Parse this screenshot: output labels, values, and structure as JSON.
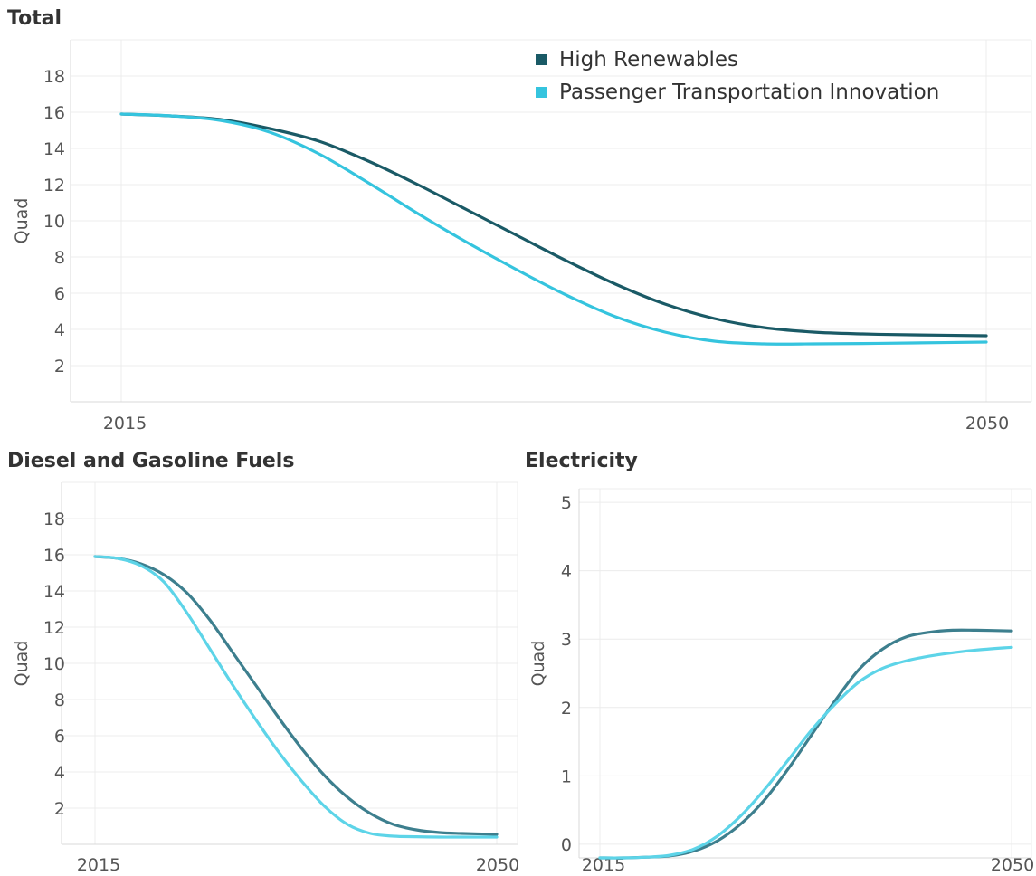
{
  "legend": [
    {
      "label": "High Renewables",
      "color": "#1a5a66"
    },
    {
      "label": "Passenger Transportation Innovation",
      "color": "#35c4de"
    }
  ],
  "chart_data": [
    {
      "id": "total",
      "type": "line",
      "title": "Total",
      "ylabel": "Quad",
      "xlabel": "",
      "x_ticks": [
        "2015",
        "2050"
      ],
      "xlim": [
        2015,
        2050
      ],
      "ylim": [
        0,
        20
      ],
      "y_ticks": [
        2,
        4,
        6,
        8,
        10,
        12,
        14,
        16,
        18
      ],
      "grid": true,
      "legend_position": "top-right",
      "series": [
        {
          "name": "High Renewables",
          "color": "#1a5a66",
          "x": [
            2015,
            2017,
            2019,
            2021,
            2023,
            2025,
            2027,
            2029,
            2031,
            2033,
            2035,
            2037,
            2039,
            2041,
            2043,
            2045,
            2047,
            2050
          ],
          "values": [
            15.9,
            15.8,
            15.6,
            15.1,
            14.4,
            13.3,
            12.0,
            10.6,
            9.2,
            7.8,
            6.5,
            5.4,
            4.6,
            4.1,
            3.85,
            3.75,
            3.7,
            3.65
          ]
        },
        {
          "name": "Passenger Transportation Innovation",
          "color": "#35c4de",
          "x": [
            2015,
            2017,
            2019,
            2021,
            2023,
            2025,
            2027,
            2029,
            2031,
            2033,
            2035,
            2037,
            2039,
            2041,
            2043,
            2045,
            2047,
            2050
          ],
          "values": [
            15.9,
            15.8,
            15.55,
            14.9,
            13.7,
            12.1,
            10.4,
            8.8,
            7.3,
            5.9,
            4.7,
            3.85,
            3.35,
            3.2,
            3.2,
            3.22,
            3.25,
            3.3
          ]
        }
      ]
    },
    {
      "id": "diesel",
      "type": "line",
      "title": "Diesel and Gasoline Fuels",
      "ylabel": "Quad",
      "xlabel": "",
      "x_ticks": [
        "2015",
        "2050"
      ],
      "xlim": [
        2015,
        2050
      ],
      "ylim": [
        0,
        20
      ],
      "y_ticks": [
        2,
        4,
        6,
        8,
        10,
        12,
        14,
        16,
        18
      ],
      "grid": true,
      "series": [
        {
          "name": "High Renewables",
          "color": "#3d7f8e",
          "x": [
            2015,
            2017,
            2019,
            2021,
            2023,
            2025,
            2027,
            2029,
            2031,
            2033,
            2035,
            2037,
            2039,
            2041,
            2043,
            2045,
            2047,
            2050
          ],
          "values": [
            15.9,
            15.8,
            15.5,
            14.9,
            13.9,
            12.4,
            10.6,
            8.8,
            7.0,
            5.3,
            3.8,
            2.6,
            1.7,
            1.1,
            0.8,
            0.65,
            0.6,
            0.55
          ]
        },
        {
          "name": "Passenger Transportation Innovation",
          "color": "#5dd4e8",
          "x": [
            2015,
            2017,
            2019,
            2021,
            2023,
            2025,
            2027,
            2029,
            2031,
            2033,
            2035,
            2037,
            2039,
            2041,
            2043,
            2045,
            2047,
            2050
          ],
          "values": [
            15.9,
            15.8,
            15.4,
            14.5,
            12.8,
            10.8,
            8.8,
            6.9,
            5.1,
            3.5,
            2.1,
            1.1,
            0.6,
            0.45,
            0.42,
            0.4,
            0.4,
            0.4
          ]
        }
      ]
    },
    {
      "id": "electricity",
      "type": "line",
      "title": "Electricity",
      "ylabel": "Quad",
      "xlabel": "",
      "x_ticks": [
        "2015",
        "2050"
      ],
      "xlim": [
        2015,
        2050
      ],
      "ylim": [
        -0.2,
        5.2
      ],
      "y_ticks": [
        0,
        1,
        2,
        3,
        4,
        5
      ],
      "grid": true,
      "series": [
        {
          "name": "High Renewables",
          "color": "#3d7f8e",
          "x": [
            2015,
            2017,
            2019,
            2021,
            2023,
            2025,
            2027,
            2029,
            2031,
            2033,
            2035,
            2037,
            2039,
            2041,
            2043,
            2045,
            2047,
            2050
          ],
          "values": [
            -0.2,
            -0.2,
            -0.19,
            -0.17,
            -0.1,
            0.05,
            0.3,
            0.65,
            1.1,
            1.6,
            2.1,
            2.55,
            2.85,
            3.03,
            3.1,
            3.13,
            3.13,
            3.12
          ]
        },
        {
          "name": "Passenger Transportation Innovation",
          "color": "#5dd4e8",
          "x": [
            2015,
            2017,
            2019,
            2021,
            2023,
            2025,
            2027,
            2029,
            2031,
            2033,
            2035,
            2037,
            2039,
            2041,
            2043,
            2045,
            2047,
            2050
          ],
          "values": [
            -0.2,
            -0.2,
            -0.19,
            -0.16,
            -0.07,
            0.12,
            0.42,
            0.8,
            1.23,
            1.67,
            2.05,
            2.37,
            2.57,
            2.68,
            2.75,
            2.8,
            2.84,
            2.88
          ]
        }
      ]
    }
  ]
}
